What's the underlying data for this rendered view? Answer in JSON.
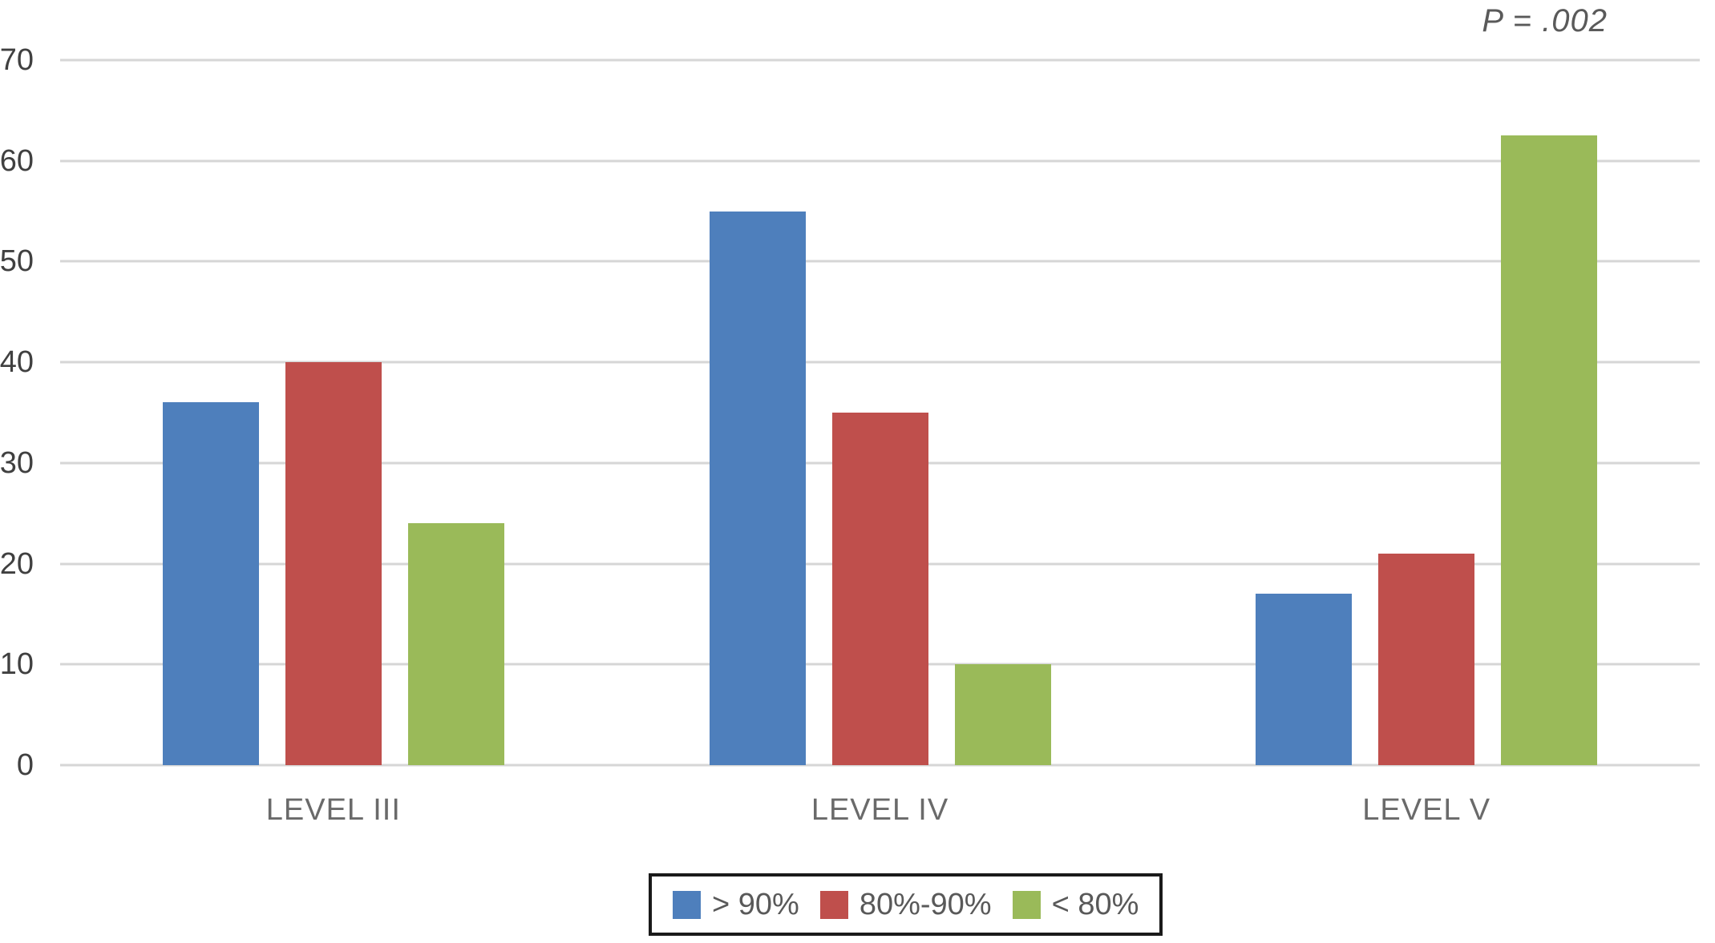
{
  "chart_data": {
    "type": "bar",
    "title": "",
    "xlabel": "",
    "ylabel": "",
    "annotation": "P = .002",
    "categories": [
      "LEVEL III",
      "LEVEL IV",
      "LEVEL V"
    ],
    "series": [
      {
        "name": "> 90%",
        "color": "#4e7fbc",
        "values": [
          36,
          55,
          17
        ]
      },
      {
        "name": "80%-90%",
        "color": "#bf4f4c",
        "values": [
          40,
          35,
          21
        ]
      },
      {
        "name": "< 80%",
        "color": "#9aba59",
        "values": [
          24,
          10,
          62.5
        ]
      }
    ],
    "ylim": [
      0,
      70
    ],
    "ytick_step": 10,
    "grid": true,
    "legend_position": "bottom"
  },
  "colors": {
    "background": "#ffffff",
    "gridline": "#d6d6d6",
    "axis_text": "#404040",
    "category_text": "#6a6a6a",
    "legend_border": "#1a1a1a"
  }
}
